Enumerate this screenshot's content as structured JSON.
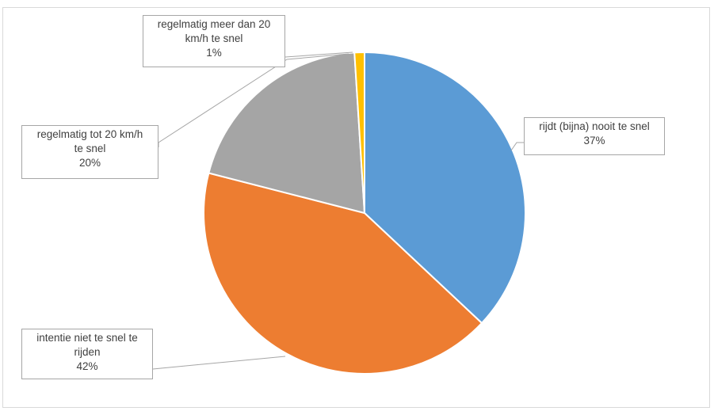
{
  "chart_data": {
    "type": "pie",
    "slices": [
      {
        "label": "rijdt (bijna) nooit te snel",
        "value": 37,
        "value_label": "37%",
        "color": "#5b9bd5"
      },
      {
        "label": "intentie niet te snel te rijden",
        "value": 42,
        "value_label": "42%",
        "color": "#ed7d31"
      },
      {
        "label": "regelmatig tot 20 km/h te snel",
        "value": 20,
        "value_label": "20%",
        "color": "#a5a5a5"
      },
      {
        "label": "regelmatig meer dan 20 km/h te snel",
        "value": 1,
        "value_label": "1%",
        "color": "#ffc000"
      }
    ],
    "legend": "none"
  },
  "callouts": {
    "blue": {
      "line1": "rijdt (bijna) nooit te snel",
      "pct": "37%"
    },
    "orange": {
      "line1": "intentie niet te snel te",
      "line2": "rijden",
      "pct": "42%"
    },
    "gray": {
      "line1": "regelmatig tot 20 km/h",
      "line2": "te snel",
      "pct": "20%"
    },
    "yellow": {
      "line1": "regelmatig meer dan 20",
      "line2": "km/h te snel",
      "pct": "1%"
    }
  }
}
